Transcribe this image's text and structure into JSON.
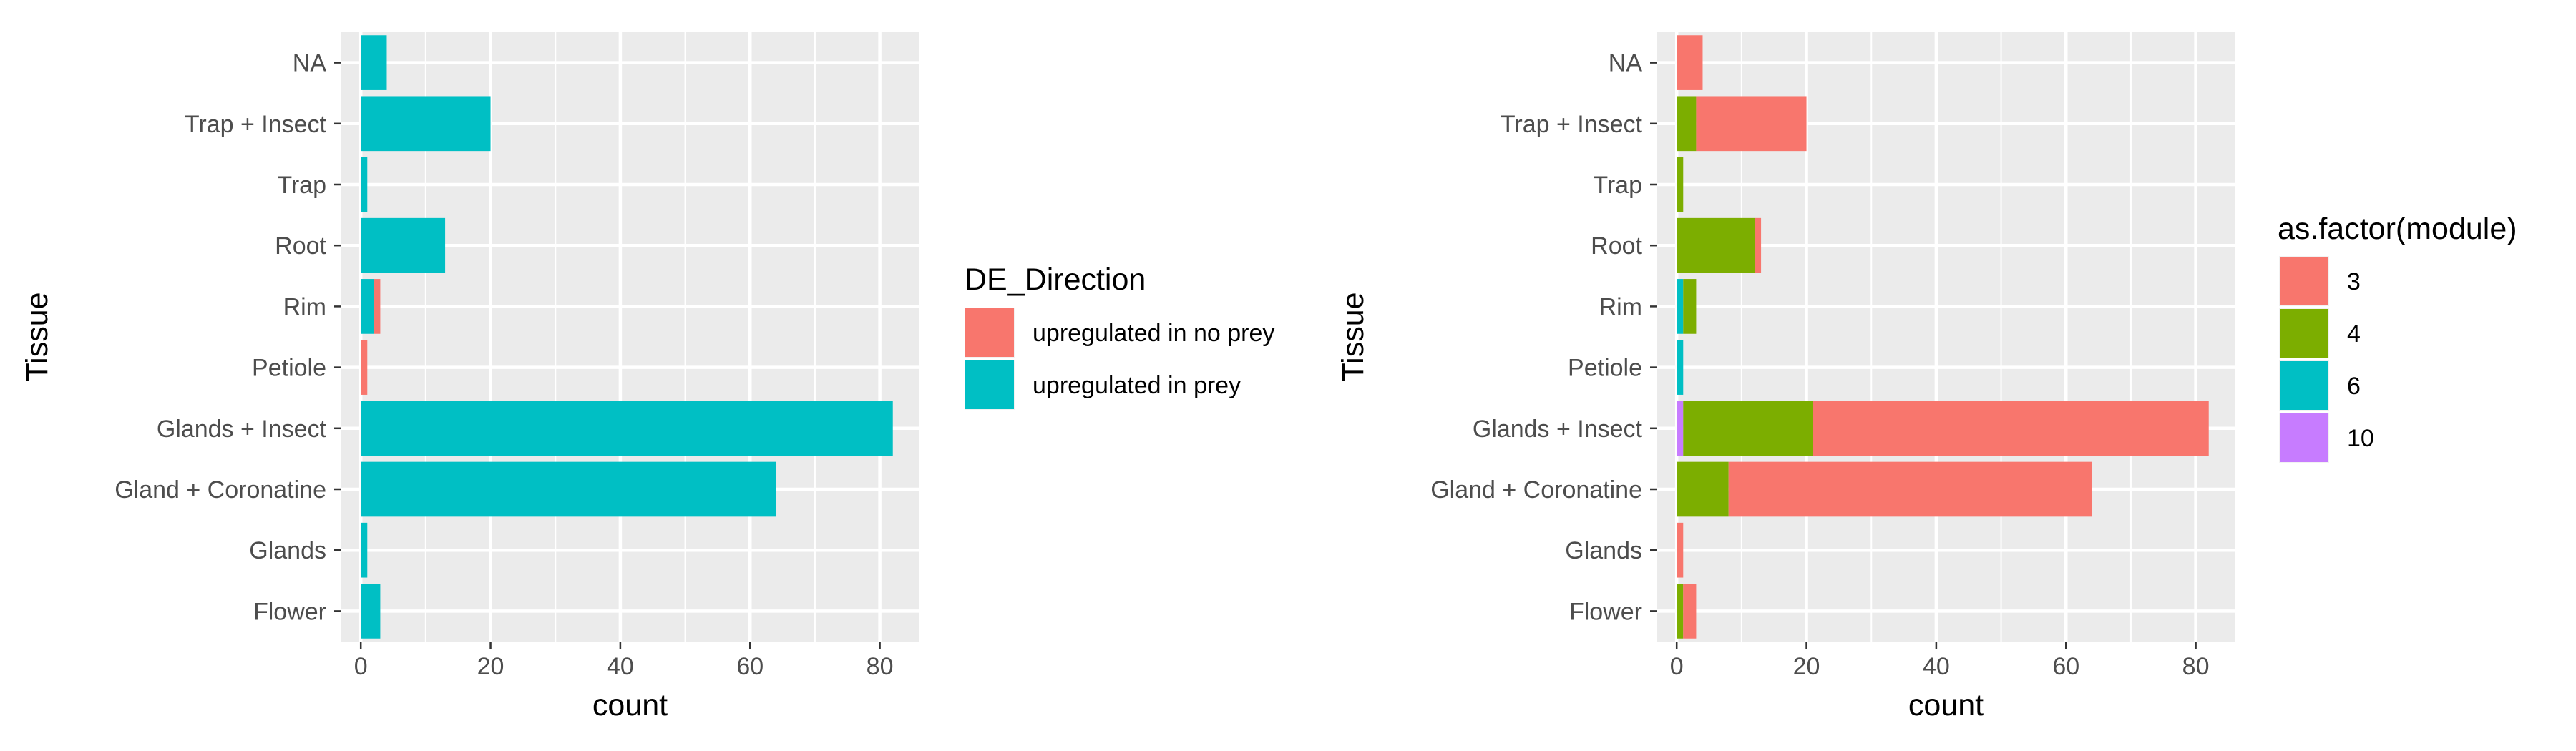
{
  "chart_data": [
    {
      "type": "bar",
      "orientation": "horizontal",
      "stacked": true,
      "categories": [
        "NA",
        "Trap + Insect",
        "Trap",
        "Root",
        "Rim",
        "Petiole",
        "Glands + Insect",
        "Gland + Coronatine",
        "Glands",
        "Flower"
      ],
      "xlabel": "count",
      "ylabel": "Tissue",
      "xlim": [
        -3,
        86
      ],
      "xticks": [
        0,
        20,
        40,
        60,
        80
      ],
      "xtick_labels": [
        "0",
        "20",
        "40",
        "60",
        "80"
      ],
      "grid": true,
      "legend": {
        "title": "DE_Direction",
        "placement": "right",
        "entries": [
          {
            "label": "upregulated in no prey",
            "color": "#F8766D"
          },
          {
            "label": "upregulated in prey",
            "color": "#00BFC4"
          }
        ]
      },
      "series": [
        {
          "name": "upregulated in prey",
          "color": "#00BFC4",
          "values": [
            4,
            20,
            1,
            13,
            2,
            0,
            82,
            64,
            1,
            3
          ]
        },
        {
          "name": "upregulated in no prey",
          "color": "#F8766D",
          "values": [
            0,
            0,
            0,
            0,
            1,
            1,
            0,
            0,
            0,
            0
          ]
        }
      ]
    },
    {
      "type": "bar",
      "orientation": "horizontal",
      "stacked": true,
      "categories": [
        "NA",
        "Trap + Insect",
        "Trap",
        "Root",
        "Rim",
        "Petiole",
        "Glands + Insect",
        "Gland + Coronatine",
        "Glands",
        "Flower"
      ],
      "xlabel": "count",
      "ylabel": "Tissue",
      "xlim": [
        -3,
        86
      ],
      "xticks": [
        0,
        20,
        40,
        60,
        80
      ],
      "xtick_labels": [
        "0",
        "20",
        "40",
        "60",
        "80"
      ],
      "grid": true,
      "legend": {
        "title": "as.factor(module)",
        "placement": "right",
        "entries": [
          {
            "label": "3",
            "color": "#F8766D"
          },
          {
            "label": "4",
            "color": "#7CAE00"
          },
          {
            "label": "6",
            "color": "#00BFC4"
          },
          {
            "label": "10",
            "color": "#C77CFF"
          }
        ]
      },
      "series": [
        {
          "name": "10",
          "color": "#C77CFF",
          "values": [
            0,
            0,
            0,
            0,
            0,
            0,
            1,
            0,
            0,
            0
          ]
        },
        {
          "name": "6",
          "color": "#00BFC4",
          "values": [
            0,
            0,
            0,
            0,
            1,
            1,
            0,
            0,
            0,
            0
          ]
        },
        {
          "name": "4",
          "color": "#7CAE00",
          "values": [
            0,
            3,
            1,
            12,
            2,
            0,
            20,
            8,
            0,
            1
          ]
        },
        {
          "name": "3",
          "color": "#F8766D",
          "values": [
            4,
            17,
            0,
            1,
            0,
            0,
            61,
            56,
            1,
            2
          ]
        }
      ]
    }
  ]
}
